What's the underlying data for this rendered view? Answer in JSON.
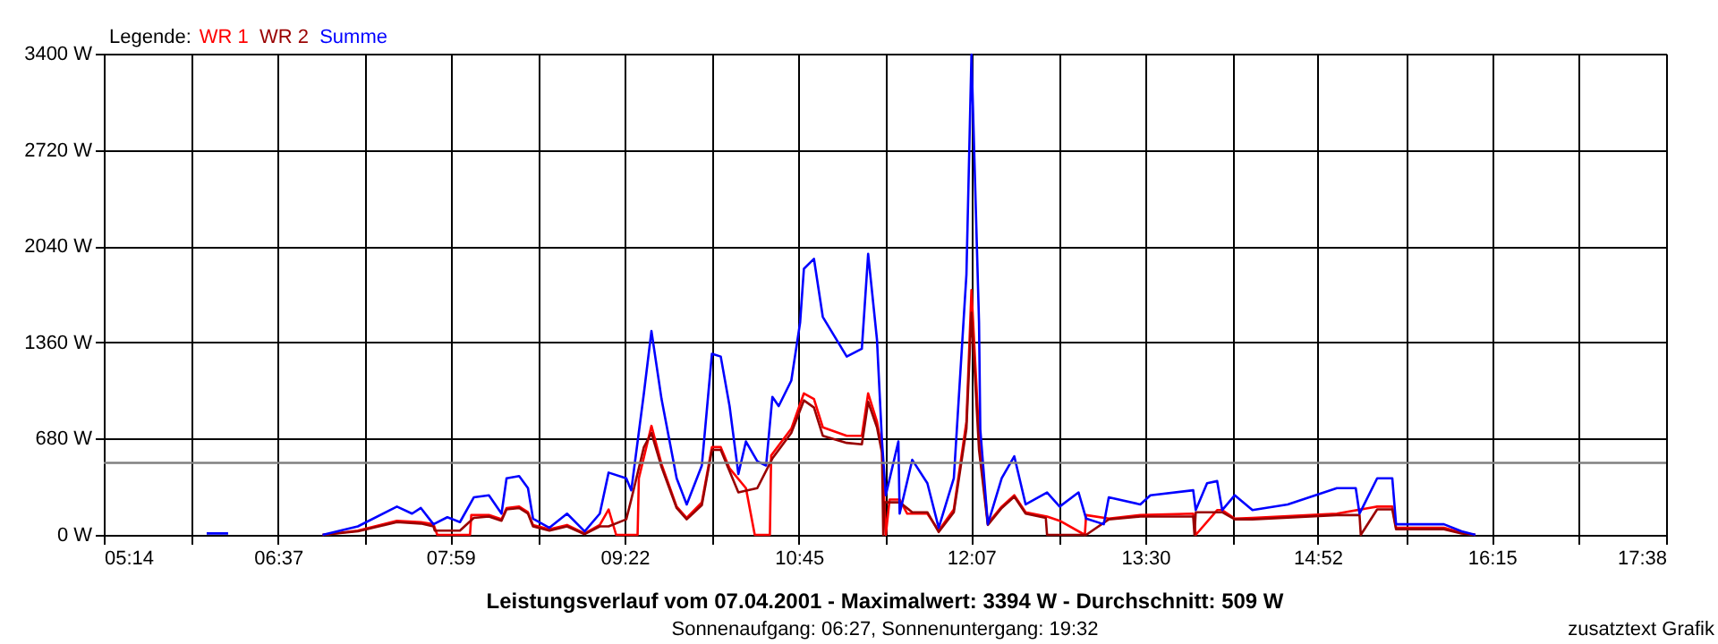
{
  "chart_data": {
    "type": "line",
    "title": "Leistungsverlauf vom 07.04.2001 - Maximalwert: 3394 W - Durchschnitt: 509 W",
    "subtitle": "Sonnenaufgang: 06:27, Sonnenuntergang: 19:32",
    "legend_title": "Legende:",
    "legend": "top left",
    "marker": "none",
    "line_style": "solid",
    "grid": true,
    "annotations": [
      "zusatztext Grafik"
    ],
    "xlim": [
      5.2333,
      17.6333
    ],
    "xticks": [
      {
        "value": 5.2333,
        "label": "05:14"
      },
      {
        "value": 5.9222,
        "label": null
      },
      {
        "value": 6.6167,
        "label": "06:37"
      },
      {
        "value": 7.3,
        "label": null
      },
      {
        "value": 7.9833,
        "label": "07:59"
      },
      {
        "value": 8.6778,
        "label": null
      },
      {
        "value": 9.3667,
        "label": "09:22"
      },
      {
        "value": 10.0556,
        "label": null
      },
      {
        "value": 10.75,
        "label": "10:45"
      },
      {
        "value": 11.4333,
        "label": null
      },
      {
        "value": 12.1167,
        "label": "12:07"
      },
      {
        "value": 12.8111,
        "label": null
      },
      {
        "value": 13.5,
        "label": "13:30"
      },
      {
        "value": 14.1889,
        "label": null
      },
      {
        "value": 14.8667,
        "label": "14:52"
      },
      {
        "value": 15.5667,
        "label": null
      },
      {
        "value": 16.25,
        "label": "16:15"
      },
      {
        "value": 16.9444,
        "label": null
      },
      {
        "value": 17.6333,
        "label": "17:38"
      }
    ],
    "ylim": [
      0,
      3400
    ],
    "yticks": [
      {
        "value": 0,
        "label": "0 W"
      },
      {
        "value": 680,
        "label": "680 W"
      },
      {
        "value": 1360,
        "label": "1360 W"
      },
      {
        "value": 2040,
        "label": "2040 W"
      },
      {
        "value": 2720,
        "label": "2720 W"
      },
      {
        "value": 3400,
        "label": "3400 W"
      }
    ],
    "ref_lines": [
      {
        "axis": "y",
        "value": 509,
        "label": null,
        "color": "#808080"
      }
    ],
    "series": [
      {
        "name": "WR 1",
        "color": "#ff0000",
        "x": [
          6.97,
          7.25,
          7.56,
          7.75,
          7.85,
          7.88,
          8.14,
          8.15,
          8.29,
          8.39,
          8.43,
          8.53,
          8.6,
          8.64,
          8.77,
          8.91,
          9.05,
          9.17,
          9.24,
          9.3,
          9.47,
          9.48,
          9.58,
          9.66,
          9.78,
          9.86,
          9.98,
          10.06,
          10.13,
          10.2,
          10.33,
          10.4,
          10.52,
          10.53,
          10.69,
          10.79,
          10.87,
          10.94,
          11.13,
          11.25,
          11.3,
          11.37,
          11.41,
          11.44,
          11.47,
          11.55,
          11.61,
          11.77,
          11.86,
          11.98,
          12.08,
          12.12,
          12.18,
          12.25,
          12.36,
          12.46,
          12.55,
          12.72,
          12.82,
          13.02,
          13.03,
          13.21,
          13.46,
          13.88,
          13.9,
          14.07,
          14.11,
          14.21,
          14.35,
          15.02,
          15.34,
          15.46,
          15.49,
          15.87,
          16.01,
          16.12
        ],
        "values": [
          0,
          30,
          100,
          90,
          75,
          0,
          0,
          140,
          140,
          110,
          190,
          200,
          160,
          70,
          40,
          70,
          10,
          70,
          180,
          0,
          0,
          400,
          770,
          500,
          200,
          120,
          230,
          620,
          620,
          470,
          330,
          0,
          0,
          560,
          750,
          1000,
          960,
          760,
          700,
          700,
          1000,
          800,
          600,
          0,
          250,
          250,
          150,
          150,
          30,
          180,
          800,
          1730,
          700,
          80,
          200,
          280,
          160,
          130,
          100,
          0,
          140,
          115,
          140,
          150,
          0,
          175,
          175,
          115,
          120,
          150,
          200,
          200,
          50,
          50,
          15,
          0
        ]
      },
      {
        "name": "WR 2",
        "color": "#990000",
        "x": [
          6.97,
          7.25,
          7.56,
          7.75,
          7.85,
          7.86,
          7.96,
          8.06,
          8.17,
          8.29,
          8.39,
          8.43,
          8.53,
          8.6,
          8.64,
          8.77,
          8.91,
          9.05,
          9.17,
          9.24,
          9.38,
          9.42,
          9.52,
          9.58,
          9.66,
          9.78,
          9.86,
          9.98,
          10.06,
          10.13,
          10.2,
          10.27,
          10.42,
          10.54,
          10.69,
          10.79,
          10.87,
          10.94,
          11.13,
          11.25,
          11.3,
          11.37,
          11.41,
          11.42,
          11.43,
          11.55,
          11.65,
          11.77,
          11.86,
          11.98,
          12.08,
          12.12,
          12.18,
          12.25,
          12.36,
          12.46,
          12.55,
          12.71,
          12.72,
          13.03,
          13.21,
          13.46,
          13.88,
          13.89,
          13.9,
          14.07,
          14.11,
          14.21,
          14.35,
          15.02,
          15.2,
          15.21,
          15.34,
          15.46,
          15.49,
          15.87,
          16.01,
          16.12
        ],
        "values": [
          0,
          25,
          90,
          80,
          60,
          30,
          30,
          30,
          120,
          130,
          100,
          180,
          190,
          150,
          60,
          30,
          60,
          5,
          60,
          60,
          110,
          250,
          620,
          720,
          480,
          190,
          110,
          210,
          600,
          600,
          450,
          300,
          330,
          540,
          720,
          950,
          900,
          700,
          650,
          640,
          940,
          760,
          580,
          0,
          230,
          230,
          160,
          160,
          20,
          160,
          750,
          1570,
          600,
          70,
          190,
          270,
          150,
          120,
          0,
          0,
          110,
          130,
          130,
          0,
          160,
          160,
          160,
          110,
          110,
          140,
          140,
          0,
          180,
          180,
          40,
          40,
          10,
          0
        ]
      },
      {
        "name": "Summe",
        "color": "#0000ff",
        "x": [
          6.05,
          6.22,
          6.5,
          6.97,
          7.25,
          7.56,
          7.68,
          7.75,
          7.85,
          7.96,
          8.06,
          8.17,
          8.29,
          8.39,
          8.43,
          8.53,
          8.6,
          8.64,
          8.77,
          8.91,
          9.05,
          9.17,
          9.24,
          9.38,
          9.42,
          9.52,
          9.58,
          9.66,
          9.78,
          9.86,
          9.98,
          10.06,
          10.13,
          10.2,
          10.27,
          10.33,
          10.42,
          10.49,
          10.54,
          10.59,
          10.69,
          10.76,
          10.79,
          10.87,
          10.94,
          11.13,
          11.25,
          11.3,
          11.37,
          11.41,
          11.44,
          11.54,
          11.55,
          11.65,
          11.77,
          11.86,
          11.98,
          12.08,
          12.12,
          12.18,
          12.19,
          12.25,
          12.36,
          12.46,
          12.55,
          12.72,
          12.82,
          12.97,
          13.03,
          13.17,
          13.21,
          13.46,
          13.54,
          13.88,
          13.9,
          13.99,
          14.07,
          14.11,
          14.21,
          14.35,
          14.63,
          15.02,
          15.17,
          15.2,
          15.34,
          15.46,
          15.49,
          15.87,
          16.01,
          16.12
        ],
        "values": [
          10,
          10,
          null,
          0,
          60,
          200,
          150,
          190,
          75,
          125,
          90,
          265,
          280,
          150,
          400,
          415,
          330,
          115,
          50,
          150,
          25,
          150,
          440,
          400,
          315,
          1000,
          1440,
          960,
          400,
          215,
          490,
          1280,
          1260,
          910,
          430,
          660,
          520,
          490,
          975,
          910,
          1090,
          1500,
          1880,
          1950,
          1540,
          1260,
          1315,
          1985,
          1380,
          660,
          280,
          660,
          150,
          530,
          365,
          50,
          400,
          1840,
          3394,
          1500,
          745,
          75,
          400,
          555,
          215,
          300,
          200,
          300,
          115,
          75,
          265,
          215,
          280,
          315,
          175,
          365,
          380,
          175,
          280,
          175,
          215,
          330,
          330,
          150,
          400,
          400,
          75,
          75,
          25,
          0
        ]
      }
    ]
  }
}
